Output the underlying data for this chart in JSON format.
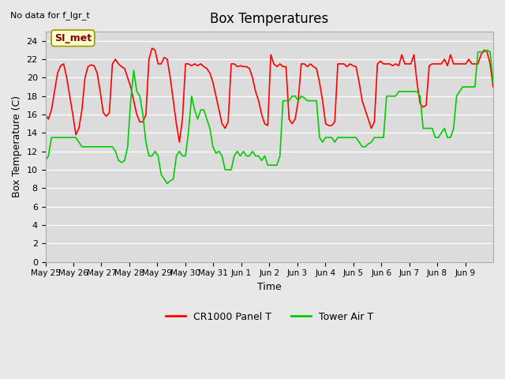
{
  "title": "Box Temperatures",
  "xlabel": "Time",
  "ylabel": "Box Temperature (C)",
  "top_left_note": "No data for f_lgr_t",
  "annotation_text": "SI_met",
  "ylim": [
    0,
    25
  ],
  "yticks": [
    0,
    2,
    4,
    6,
    8,
    10,
    12,
    14,
    16,
    18,
    20,
    22,
    24
  ],
  "xtick_positions": [
    0,
    1,
    2,
    3,
    4,
    5,
    6,
    7,
    8,
    9,
    10,
    11,
    12,
    13,
    14,
    15
  ],
  "xtick_labels": [
    "May 25",
    "May 26",
    "May 27",
    "May 28",
    "May 29",
    "May 30",
    "May 31",
    "Jun 1",
    "Jun 2",
    "Jun 3",
    "Jun 4",
    "Jun 5",
    "Jun 6",
    "Jun 7",
    "Jun 8",
    "Jun 9"
  ],
  "xlim": [
    0,
    16
  ],
  "background_color": "#e8e8e8",
  "plot_bg_color": "#dcdcdc",
  "legend_labels": [
    "CR1000 Panel T",
    "Tower Air T"
  ],
  "legend_colors": [
    "#ff0000",
    "#00cc00"
  ],
  "red_line_color": "#ff0000",
  "green_line_color": "#00cc00",
  "red_data": [
    16.0,
    15.5,
    16.5,
    18.5,
    20.5,
    21.3,
    21.5,
    20.0,
    18.0,
    16.0,
    13.8,
    14.5,
    16.5,
    20.0,
    21.2,
    21.4,
    21.3,
    20.5,
    18.5,
    16.2,
    15.8,
    16.2,
    21.5,
    22.0,
    21.5,
    21.2,
    21.0,
    20.0,
    19.0,
    17.5,
    16.0,
    15.2,
    15.2,
    16.0,
    22.0,
    23.2,
    23.0,
    21.5,
    21.5,
    22.2,
    22.0,
    20.0,
    17.5,
    15.0,
    13.0,
    15.5,
    21.5,
    21.5,
    21.3,
    21.5,
    21.3,
    21.5,
    21.2,
    21.0,
    20.5,
    19.5,
    18.0,
    16.5,
    15.0,
    14.5,
    15.2,
    21.5,
    21.5,
    21.2,
    21.3,
    21.2,
    21.2,
    21.0,
    20.0,
    18.5,
    17.5,
    16.0,
    15.0,
    14.8,
    22.5,
    21.5,
    21.2,
    21.5,
    21.2,
    21.2,
    15.5,
    15.0,
    15.5,
    17.5,
    21.5,
    21.5,
    21.2,
    21.5,
    21.2,
    21.0,
    19.5,
    17.5,
    15.0,
    14.8,
    14.8,
    15.2,
    21.5,
    21.5,
    21.5,
    21.2,
    21.5,
    21.3,
    21.2,
    19.5,
    17.5,
    16.5,
    15.5,
    14.5,
    15.2,
    21.5,
    21.8,
    21.5,
    21.5,
    21.5,
    21.3,
    21.5,
    21.3,
    22.5,
    21.5,
    21.5,
    21.5,
    22.5,
    19.5,
    17.2,
    16.8,
    17.0,
    21.3,
    21.5,
    21.5,
    21.5,
    21.5,
    22.0,
    21.3,
    22.5,
    21.5,
    21.5,
    21.5,
    21.5,
    21.5,
    22.0,
    21.5,
    21.5,
    21.5,
    22.5,
    23.0,
    22.8,
    21.5,
    19.0
  ],
  "green_data": [
    11.0,
    11.5,
    13.5,
    13.5,
    13.5,
    13.5,
    13.5,
    13.5,
    13.5,
    13.5,
    13.5,
    13.0,
    12.5,
    12.5,
    12.5,
    12.5,
    12.5,
    12.5,
    12.5,
    12.5,
    12.5,
    12.5,
    12.5,
    12.0,
    11.0,
    10.8,
    11.0,
    12.5,
    17.5,
    20.8,
    18.5,
    18.0,
    16.0,
    13.0,
    11.5,
    11.5,
    12.0,
    11.5,
    9.5,
    9.0,
    8.5,
    8.8,
    9.0,
    11.5,
    12.0,
    11.5,
    11.5,
    14.2,
    18.0,
    16.5,
    15.5,
    16.5,
    16.5,
    15.5,
    14.5,
    12.5,
    11.8,
    12.0,
    11.5,
    10.0,
    10.0,
    10.0,
    11.5,
    12.0,
    11.5,
    12.0,
    11.5,
    11.5,
    12.0,
    11.5,
    11.5,
    11.0,
    11.5,
    10.5,
    10.5,
    10.5,
    10.5,
    11.5,
    17.5,
    17.5,
    17.5,
    18.0,
    18.0,
    17.5,
    18.0,
    17.8,
    17.5,
    17.5,
    17.5,
    17.5,
    13.5,
    13.0,
    13.5,
    13.5,
    13.5,
    13.0,
    13.5,
    13.5,
    13.5,
    13.5,
    13.5,
    13.5,
    13.5,
    13.0,
    12.5,
    12.5,
    12.8,
    13.0,
    13.5,
    13.5,
    13.5,
    13.5,
    18.0,
    18.0,
    18.0,
    18.0,
    18.5,
    18.5,
    18.5,
    18.5,
    18.5,
    18.5,
    18.5,
    18.0,
    14.5,
    14.5,
    14.5,
    14.5,
    13.5,
    13.5,
    14.0,
    14.5,
    13.5,
    13.5,
    14.5,
    18.0,
    18.5,
    19.0,
    19.0,
    19.0,
    19.0,
    19.0,
    22.8,
    22.8,
    22.8,
    23.0,
    22.8,
    19.5
  ]
}
